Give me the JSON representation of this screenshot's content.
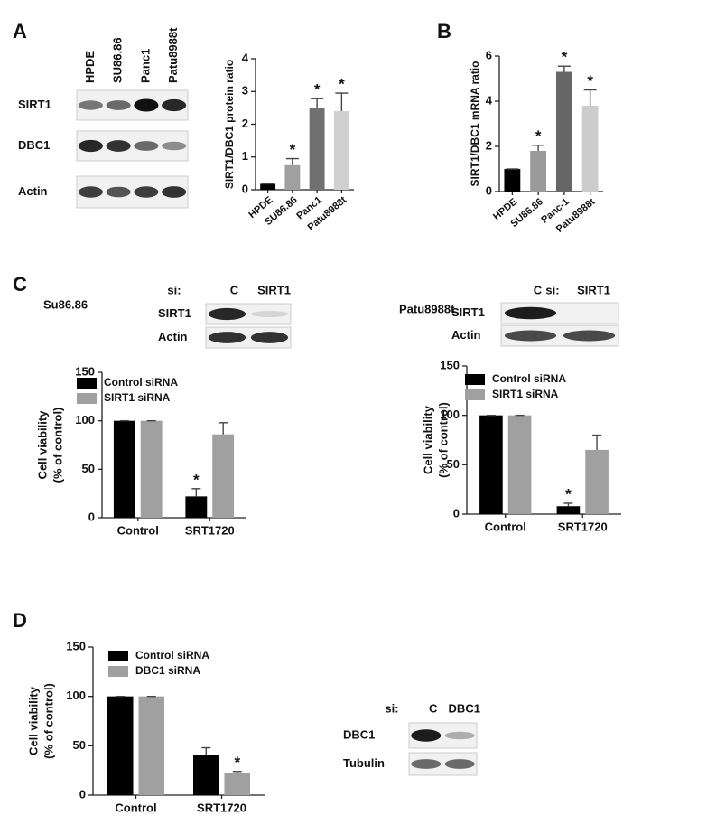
{
  "panel_labels": [
    "A",
    "B",
    "C",
    "D"
  ],
  "blots": [
    {
      "lanes": [
        "HPDE",
        "SU86.86",
        "Panc1",
        "Patu8988t"
      ],
      "rows": [
        "SIRT1",
        "DBC1",
        "Actin"
      ]
    },
    {
      "title": "Su86.86",
      "prefix": "si:",
      "lanes": [
        "C",
        "SIRT1"
      ],
      "rows": [
        "SIRT1",
        "Actin"
      ]
    },
    {
      "title": "Patu8988t",
      "prefix": "si:",
      "lanes": [
        "C",
        "SIRT1"
      ],
      "rows": [
        "SIRT1",
        "Actin"
      ]
    },
    {
      "prefix": "si:",
      "lanes": [
        "C",
        "DBC1"
      ],
      "rows": [
        "DBC1",
        "Tubulin"
      ]
    }
  ],
  "chart_data": [
    {
      "type": "bar",
      "ylabel": "SIRT1/DBC1 protein ratio",
      "categories": [
        "HPDE",
        "SU86.86",
        "Panc1",
        "Patu8988t"
      ],
      "values": [
        0.18,
        0.75,
        2.5,
        2.4
      ],
      "errors": [
        0,
        0.2,
        0.28,
        0.55
      ],
      "colors": [
        "#000000",
        "#a0a0a0",
        "#707070",
        "#d0d0d0"
      ],
      "ylim": [
        0,
        4
      ],
      "yticks": [
        0,
        1,
        2,
        3,
        4
      ],
      "annotations": [
        {
          "category": "SU86.86",
          "text": "*"
        },
        {
          "category": "Panc1",
          "text": "*"
        },
        {
          "category": "Patu8988t",
          "text": "*"
        }
      ]
    },
    {
      "type": "bar",
      "ylabel": "SIRT1/DBC1 mRNA ratio",
      "categories": [
        "HPDE",
        "SU86.86",
        "Panc-1",
        "Patu8988t"
      ],
      "values": [
        1,
        1.8,
        5.3,
        3.8
      ],
      "errors": [
        0,
        0.25,
        0.25,
        0.7
      ],
      "colors": [
        "#000000",
        "#9a9a9a",
        "#666666",
        "#cccccc"
      ],
      "ylim": [
        0,
        6
      ],
      "yticks": [
        0,
        2,
        4,
        6
      ],
      "annotations": [
        {
          "category": "SU86.86",
          "text": "*"
        },
        {
          "category": "Panc-1",
          "text": "*"
        },
        {
          "category": "Patu8988t",
          "text": "*"
        }
      ]
    },
    {
      "type": "bar",
      "ylabel": [
        "Cell viability",
        "(% of control)"
      ],
      "categories": [
        "Control",
        "SRT1720"
      ],
      "series": [
        {
          "name": "Control siRNA",
          "color": "#000000",
          "values": [
            100,
            22
          ],
          "errors": [
            0,
            8
          ]
        },
        {
          "name": "SIRT1 siRNA",
          "color": "#a0a0a0",
          "values": [
            100,
            86
          ],
          "errors": [
            0,
            12
          ]
        }
      ],
      "ylim": [
        0,
        150
      ],
      "yticks": [
        0,
        50,
        100,
        150
      ],
      "legend": "upper right",
      "annotations": [
        {
          "category": "SRT1720",
          "series": "Control siRNA",
          "text": "*"
        }
      ]
    },
    {
      "type": "bar",
      "ylabel": [
        "Cell viability",
        "(% of control)"
      ],
      "categories": [
        "Control",
        "SRT1720"
      ],
      "series": [
        {
          "name": "Control siRNA",
          "color": "#000000",
          "values": [
            100,
            8
          ],
          "errors": [
            0,
            3
          ]
        },
        {
          "name": "SIRT1 siRNA",
          "color": "#a0a0a0",
          "values": [
            100,
            65
          ],
          "errors": [
            0,
            15
          ]
        }
      ],
      "ylim": [
        0,
        150
      ],
      "yticks": [
        0,
        50,
        100,
        150
      ],
      "legend": "upper right",
      "annotations": [
        {
          "category": "SRT1720",
          "series": "Control siRNA",
          "text": "*"
        }
      ]
    },
    {
      "type": "bar",
      "ylabel": [
        "Cell viability",
        "(% of control)"
      ],
      "categories": [
        "Control",
        "SRT1720"
      ],
      "series": [
        {
          "name": "Control siRNA",
          "color": "#000000",
          "values": [
            100,
            41
          ],
          "errors": [
            0,
            7
          ]
        },
        {
          "name": "DBC1 siRNA",
          "color": "#a0a0a0",
          "values": [
            100,
            22
          ],
          "errors": [
            0,
            2
          ]
        }
      ],
      "ylim": [
        0,
        150
      ],
      "yticks": [
        0,
        50,
        100,
        150
      ],
      "legend": "upper right",
      "annotations": [
        {
          "category": "SRT1720",
          "series": "DBC1 siRNA",
          "text": "*"
        }
      ]
    }
  ]
}
